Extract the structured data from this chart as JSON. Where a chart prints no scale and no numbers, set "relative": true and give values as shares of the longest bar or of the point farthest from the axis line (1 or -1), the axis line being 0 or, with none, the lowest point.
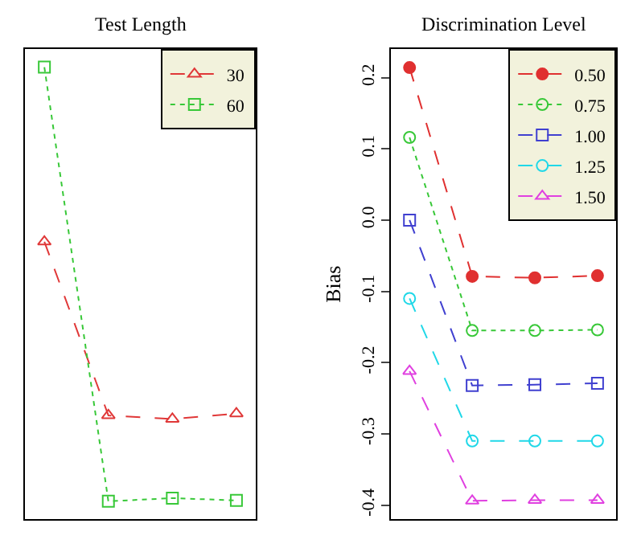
{
  "chart_data": [
    {
      "type": "line",
      "title": "Test Length",
      "categories": [
        null,
        null,
        null,
        null
      ],
      "relative": true,
      "tick_labels": false,
      "legend": "top right",
      "series": [
        {
          "name": "30",
          "color": "#e03838",
          "marker": "triangle",
          "line_style": "dashed",
          "values": [
            0.614,
            0.23,
            0.222,
            0.234
          ]
        },
        {
          "name": "60",
          "color": "#38c838",
          "marker": "square",
          "line_style": "dotted",
          "values": [
            1,
            0.04,
            0.047,
            0.042
          ]
        }
      ]
    },
    {
      "type": "line",
      "title": "Discrimination Level",
      "ylabel": "Bias",
      "categories": [
        null,
        null,
        null,
        null
      ],
      "ylim": [
        -0.42,
        0.24
      ],
      "yticks": [
        -0.4,
        -0.3,
        -0.2,
        -0.1,
        {
          "value": 0,
          "label": "0.0"
        },
        0.1,
        0.2
      ],
      "tick_labels": "y",
      "legend": "top right",
      "series": [
        {
          "name": "0.50",
          "color": "#e03030",
          "marker": "circle",
          "line_style": "dashed",
          "values": [
            0.214,
            -0.079,
            -0.081,
            -0.078
          ]
        },
        {
          "name": "0.75",
          "color": "#38c838",
          "marker": "circle-open",
          "line_style": "dotted",
          "values": [
            0.116,
            -0.155,
            -0.155,
            -0.154
          ]
        },
        {
          "name": "1.00",
          "color": "#4040d0",
          "marker": "square",
          "line_style": "dashed",
          "values": [
            0.0,
            -0.232,
            -0.231,
            -0.229
          ]
        },
        {
          "name": "1.25",
          "color": "#20d8e8",
          "marker": "circle-open",
          "line_style": "dashed",
          "values": [
            -0.11,
            -0.31,
            -0.31,
            -0.31
          ]
        },
        {
          "name": "1.50",
          "color": "#e040e0",
          "marker": "triangle",
          "line_style": "dashed",
          "values": [
            -0.212,
            -0.394,
            -0.393,
            -0.393
          ]
        }
      ]
    }
  ]
}
